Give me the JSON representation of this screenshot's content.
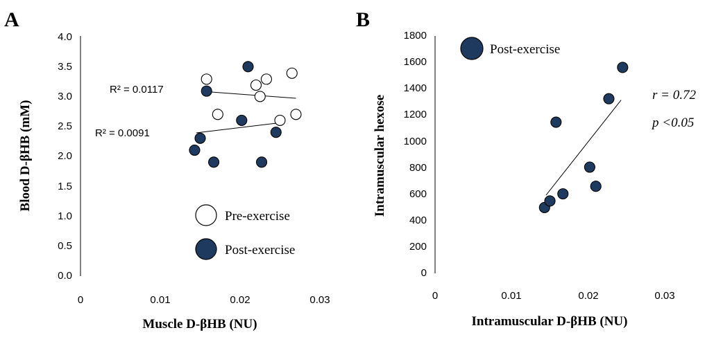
{
  "chart_data": [
    {
      "type": "scatter",
      "panel_label": "A",
      "xlabel": "Muscle D-βHB (NU)",
      "ylabel": "Blood D-βHB (mM)",
      "xlim": [
        0,
        0.03
      ],
      "ylim": [
        0,
        4.0
      ],
      "x_ticks": [
        "0",
        "0.01",
        "0.02",
        "0.03"
      ],
      "y_ticks": [
        "0.0",
        "0.5",
        "1.0",
        "1.5",
        "2.0",
        "2.5",
        "3.0",
        "3.5",
        "4.0"
      ],
      "grid": false,
      "legend": "bottom-right",
      "series": [
        {
          "name": "Pre-exercise",
          "marker": "open-circle",
          "color": "#ffffff",
          "x": [
            0.0158,
            0.0172,
            0.022,
            0.0225,
            0.0233,
            0.025,
            0.0265,
            0.027
          ],
          "y": [
            3.3,
            2.71,
            3.2,
            3.01,
            3.3,
            2.61,
            3.4,
            2.71
          ],
          "trendline": {
            "x": [
              0.0158,
              0.027
            ],
            "y": [
              3.09,
              2.98
            ],
            "label": "R² = 0.0117"
          }
        },
        {
          "name": "Post-exercise",
          "marker": "filled-circle",
          "color": "#1f3a5f",
          "x": [
            0.0143,
            0.015,
            0.0158,
            0.0167,
            0.0202,
            0.021,
            0.0227,
            0.0245
          ],
          "y": [
            2.11,
            2.31,
            3.1,
            1.91,
            2.61,
            3.51,
            1.91,
            2.41
          ],
          "trendline": {
            "x": [
              0.0145,
              0.025
            ],
            "y": [
              2.4,
              2.57
            ],
            "label": "R² = 0.0091"
          }
        }
      ]
    },
    {
      "type": "scatter",
      "panel_label": "B",
      "xlabel": "Intramuscular D-βHB (NU)",
      "ylabel": "Intramuscular hexose",
      "xlim": [
        0,
        0.03
      ],
      "ylim": [
        0,
        1800
      ],
      "x_ticks": [
        "0",
        "0.01",
        "0.02",
        "0.03"
      ],
      "y_ticks": [
        "0",
        "200",
        "400",
        "600",
        "800",
        "1000",
        "1200",
        "1400",
        "1600",
        "1800"
      ],
      "grid": false,
      "legend": "top-left",
      "annotations": [
        "r = 0.72",
        "p <0.05"
      ],
      "series": [
        {
          "name": "Post-exercise",
          "marker": "filled-circle",
          "color": "#1f3a5f",
          "x": [
            0.0143,
            0.015,
            0.0158,
            0.0167,
            0.0202,
            0.021,
            0.0227,
            0.0245
          ],
          "y": [
            505,
            555,
            1160,
            610,
            815,
            668,
            1340,
            1580
          ],
          "trendline": {
            "x": [
              0.0145,
              0.0243
            ],
            "y": [
              600,
              1330
            ]
          }
        }
      ]
    }
  ]
}
